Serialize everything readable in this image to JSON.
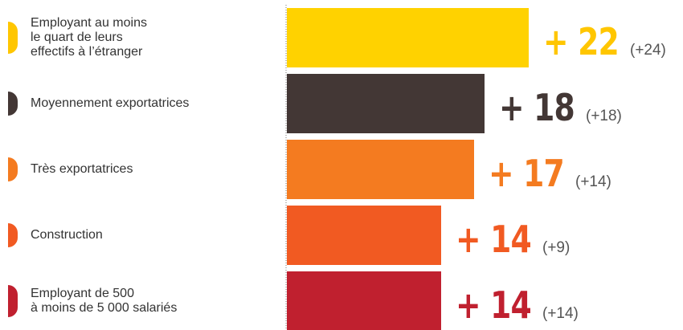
{
  "chart_data": {
    "type": "bar",
    "orientation": "horizontal",
    "categories": [
      "Employant au moins\nle quart de leurs\neffectifs à l’étranger",
      "Moyennement exportatrices",
      "Très exportatrices",
      "Construction",
      "Employant de 500\nà moins de 5 000 salariés"
    ],
    "values": [
      22,
      18,
      17,
      14,
      14
    ],
    "value_labels": [
      "+ 22",
      "+ 18",
      "+ 17",
      "+ 14",
      "+ 14"
    ],
    "previous_labels": [
      "(+24)",
      "(+18)",
      "(+14)",
      "(+9)",
      "(+14)"
    ],
    "colors": [
      "#FFD200",
      "#433735",
      "#F47B20",
      "#F15A22",
      "#C0202F"
    ],
    "label_colors": [
      "#FFC600",
      "#433735",
      "#F47B20",
      "#F15A22",
      "#C0202F"
    ],
    "xlim": [
      0,
      22
    ],
    "grid": false,
    "legend": "none"
  }
}
